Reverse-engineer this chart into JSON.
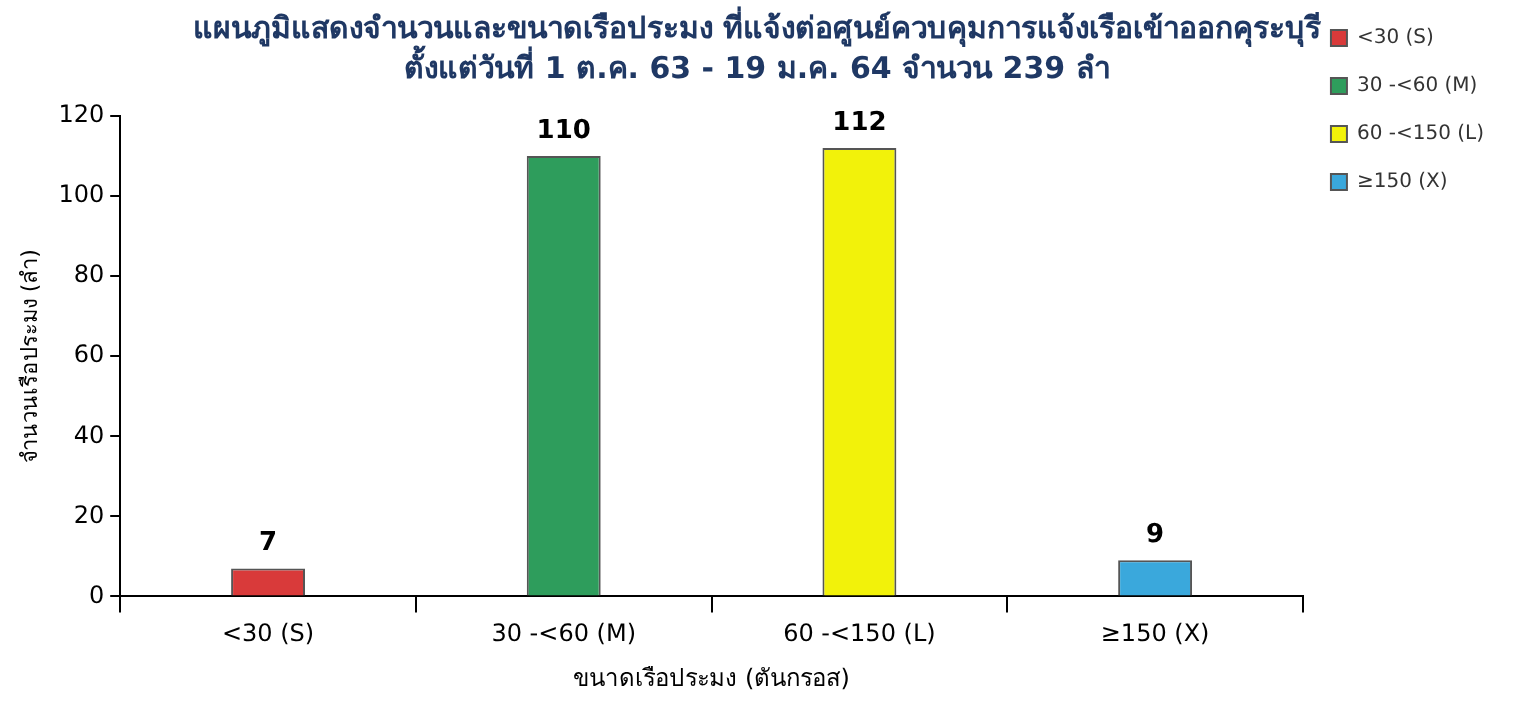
{
  "chart_data": {
    "type": "bar",
    "title": "แผนภูมิแสดงจำนวนและขนาดเรือประมง ที่แจ้งต่อศูนย์ควบคุมการแจ้งเรือเข้าออกคุระบุรี",
    "subtitle": "ตั้งแต่วันที่ 1 ต.ค. 63 - 19 ม.ค. 64 จำนวน 239 ลำ",
    "xlabel": "ขนาดเรือประมง (ตันกรอส)",
    "ylabel": "จำนวนเรือประมง (ลำ)",
    "categories": [
      "<30 (S)",
      "30 -<60 (M)",
      "60 -<150 (L)",
      "≥150 (X)"
    ],
    "series": [
      {
        "name": "<30 (S)",
        "color": "#d93a3a",
        "values": [
          7,
          null,
          null,
          null
        ]
      },
      {
        "name": "30 -<60 (M)",
        "color": "#2e9d5c",
        "values": [
          null,
          110,
          null,
          null
        ]
      },
      {
        "name": "60 -<150 (L)",
        "color": "#f2f20a",
        "values": [
          null,
          null,
          112,
          null
        ]
      },
      {
        "name": "≥150 (X)",
        "color": "#3aa8dc",
        "values": [
          null,
          null,
          null,
          9
        ]
      }
    ],
    "ylim": [
      0,
      120
    ],
    "yticks": [
      0,
      20,
      40,
      60,
      80,
      100,
      120
    ],
    "grid": false,
    "legend": "right",
    "data_labels": true
  }
}
